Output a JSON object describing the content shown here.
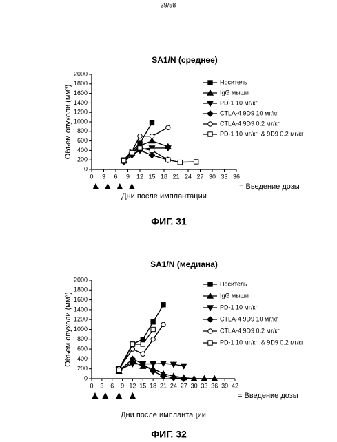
{
  "page_number": "39/58",
  "chart_data": [
    {
      "type": "line",
      "title": "SA1/N (среднее)",
      "x_label": "Дни после имплантации",
      "y_label": "Объем опухоли (мм³)",
      "caption": "ФИГ. 31",
      "dose_label": "= Введение дозы",
      "dose_days": [
        1,
        4,
        7,
        10
      ],
      "xlim": [
        0,
        36
      ],
      "xticks": [
        0,
        3,
        6,
        9,
        12,
        15,
        18,
        21,
        24,
        27,
        30,
        33,
        36
      ],
      "ylim": [
        0,
        2000
      ],
      "yticks": [
        0,
        200,
        400,
        600,
        800,
        1000,
        1200,
        1400,
        1600,
        1800,
        2000
      ],
      "series": [
        {
          "name": "Носитель",
          "color": "#000000",
          "marker": "square",
          "x": [
            8,
            10,
            12,
            15
          ],
          "values": [
            200,
            380,
            550,
            980
          ]
        },
        {
          "name": "IgG мыши",
          "color": "#000000",
          "marker": "triangle",
          "x": [
            8,
            10,
            12,
            15,
            19
          ],
          "values": [
            180,
            350,
            500,
            600,
            480
          ]
        },
        {
          "name": "PD-1 10 мг/кг",
          "color": "#000000",
          "marker": "triangle-down",
          "x": [
            8,
            10,
            12,
            15,
            19
          ],
          "values": [
            170,
            300,
            420,
            450,
            450
          ]
        },
        {
          "name": "CTLA-4 9D9 10 мг/кг",
          "color": "#000000",
          "marker": "diamond",
          "x": [
            8,
            10,
            12,
            15,
            19
          ],
          "values": [
            160,
            300,
            400,
            300,
            200
          ]
        },
        {
          "name": "CTLA-4 9D9 0.2 мг/кг",
          "color": "#000000",
          "marker": "circle",
          "x": [
            8,
            10,
            12,
            15,
            19
          ],
          "values": [
            200,
            380,
            700,
            700,
            880
          ]
        },
        {
          "name": "PD-1 10 мг/кг  & 9D9 0.2 мг/кг",
          "color": "#000000",
          "marker": "open-square",
          "x": [
            8,
            10,
            12,
            15,
            19,
            22,
            26
          ],
          "values": [
            180,
            350,
            450,
            400,
            200,
            150,
            160
          ]
        }
      ]
    },
    {
      "type": "line",
      "title": "SA1/N (медиана)",
      "x_label": "Дни после имплантации",
      "y_label": "Объем опухоли (мм³)",
      "caption": "ФИГ. 32",
      "dose_label": "= Введение дозы",
      "dose_days": [
        1,
        4,
        8,
        12
      ],
      "xlim": [
        0,
        42
      ],
      "xticks": [
        0,
        3,
        6,
        9,
        12,
        15,
        18,
        21,
        24,
        27,
        30,
        33,
        36,
        39,
        42
      ],
      "ylim": [
        0,
        2000
      ],
      "yticks": [
        0,
        200,
        400,
        600,
        800,
        1000,
        1200,
        1400,
        1600,
        1800,
        2000
      ],
      "series": [
        {
          "name": "Носитель",
          "color": "#000000",
          "marker": "square",
          "x": [
            8,
            12,
            15,
            18,
            21
          ],
          "values": [
            200,
            700,
            800,
            1150,
            1500
          ]
        },
        {
          "name": "IgG мыши",
          "color": "#000000",
          "marker": "triangle",
          "x": [
            8,
            12,
            15,
            18,
            21,
            24,
            27,
            30,
            33,
            36
          ],
          "values": [
            150,
            350,
            250,
            200,
            100,
            50,
            20,
            0,
            0,
            0
          ]
        },
        {
          "name": "PD-1 10 мг/кг",
          "color": "#000000",
          "marker": "triangle-down",
          "x": [
            8,
            12,
            15,
            18,
            21,
            24,
            27
          ],
          "values": [
            180,
            300,
            300,
            300,
            310,
            290,
            260
          ]
        },
        {
          "name": "CTLA-4 9D9 10 мг/кг",
          "color": "#000000",
          "marker": "diamond",
          "x": [
            8,
            12,
            15,
            18,
            21,
            24,
            27
          ],
          "values": [
            160,
            400,
            300,
            150,
            50,
            20,
            0
          ]
        },
        {
          "name": "CTLA-4 9D9 0.2 мг/кг",
          "color": "#000000",
          "marker": "circle",
          "x": [
            8,
            12,
            15,
            18,
            21
          ],
          "values": [
            200,
            600,
            500,
            800,
            1100
          ]
        },
        {
          "name": "PD-1 10 мг/кг  & 9D9 0.2 мг/кг",
          "color": "#000000",
          "marker": "open-square",
          "x": [
            8,
            12,
            15,
            18
          ],
          "values": [
            170,
            700,
            700,
            1000
          ]
        }
      ]
    }
  ]
}
